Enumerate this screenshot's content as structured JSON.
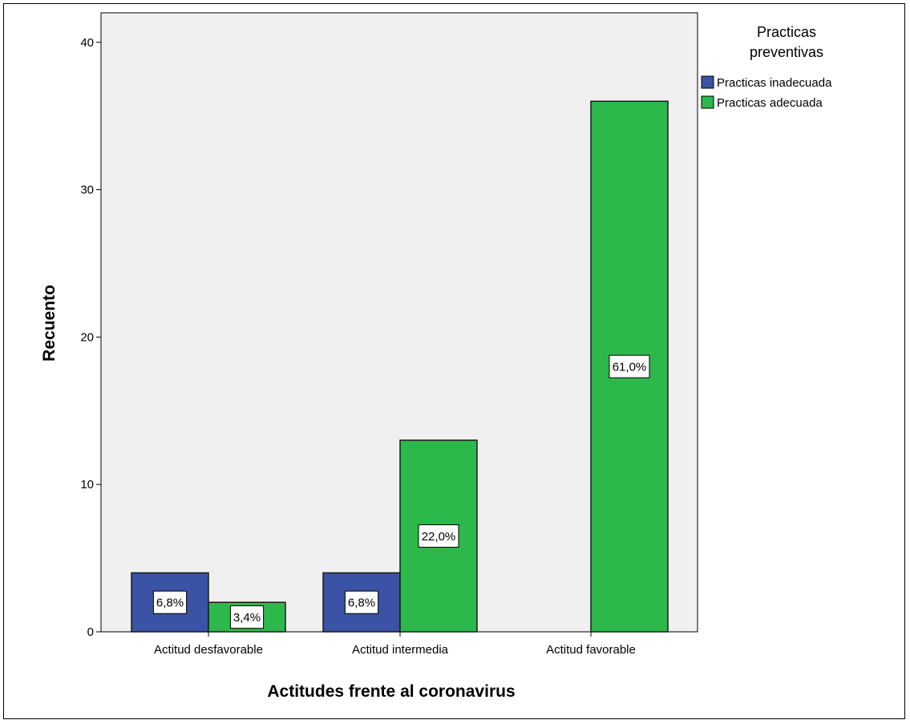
{
  "chart_data": {
    "type": "bar",
    "title": "",
    "xlabel": "Actitudes frente al coronavirus",
    "ylabel": "Recuento",
    "categories": [
      "Actitud desfavorable",
      "Actitud intermedia",
      "Actitud favorable"
    ],
    "series": [
      {
        "name": "Practicas inadecuada",
        "color": "#3a53a4",
        "values": [
          4,
          4,
          0
        ],
        "labels": [
          "6,8%",
          "6,8%",
          ""
        ]
      },
      {
        "name": "Practicas adecuada",
        "color": "#2db84b",
        "values": [
          2,
          13,
          36
        ],
        "labels": [
          "3,4%",
          "22,0%",
          "61,0%"
        ]
      }
    ],
    "ylim": [
      0,
      42
    ],
    "yticks": [
      0,
      10,
      20,
      30,
      40
    ],
    "grid": false,
    "plot_background": "#f0f0f0",
    "legend": {
      "title_lines": [
        "Practicas",
        "preventivas"
      ],
      "placement": "top-right, outside plot"
    }
  }
}
